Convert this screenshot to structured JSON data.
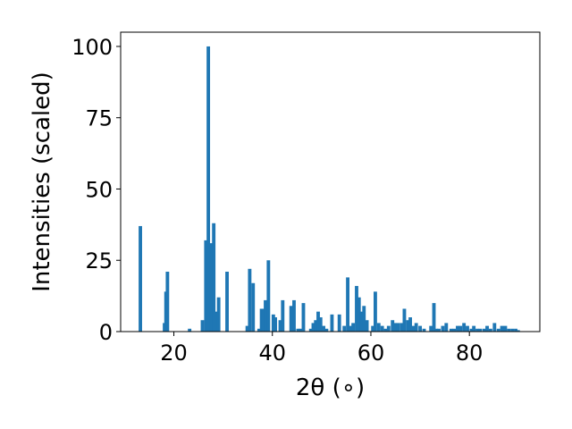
{
  "chart_data": {
    "type": "bar",
    "title": "",
    "xlabel": "2θ (∘)",
    "ylabel": "Intensities (scaled)",
    "xlim": [
      9.2,
      94.3
    ],
    "ylim": [
      0,
      105
    ],
    "xticks": [
      20,
      40,
      60,
      80
    ],
    "yticks": [
      0,
      25,
      50,
      75,
      100
    ],
    "grid": false,
    "legend": "none",
    "bar_color": "#1f77b4",
    "bar_width": 0.7,
    "x": [
      13.2,
      18.1,
      18.4,
      18.7,
      23.2,
      25.8,
      26.5,
      27.0,
      27.6,
      28.1,
      28.6,
      29.1,
      30.8,
      34.9,
      35.4,
      36.1,
      37.3,
      37.8,
      38.2,
      38.6,
      39.2,
      40.2,
      40.6,
      41.6,
      42.1,
      43.8,
      44.4,
      45.2,
      45.7,
      46.3,
      47.8,
      48.3,
      48.8,
      49.3,
      49.8,
      50.4,
      51.0,
      52.1,
      53.6,
      54.6,
      55.3,
      55.8,
      56.4,
      57.1,
      57.6,
      58.1,
      58.6,
      59.2,
      60.4,
      60.9,
      61.6,
      62.3,
      63.0,
      63.6,
      64.4,
      64.9,
      65.5,
      66.2,
      66.8,
      67.5,
      68.0,
      68.7,
      69.2,
      70.0,
      70.8,
      72.2,
      72.8,
      73.3,
      73.8,
      74.6,
      75.3,
      76.3,
      76.9,
      77.6,
      78.2,
      78.9,
      79.6,
      80.4,
      80.9,
      81.6,
      82.2,
      83.0,
      83.6,
      84.3,
      85.1,
      85.9,
      86.6,
      87.3,
      88.0,
      88.7,
      89.4,
      89.9
    ],
    "values": [
      37,
      3,
      14,
      21,
      1,
      4,
      32,
      100,
      31,
      38,
      7,
      12,
      21,
      2,
      22,
      17,
      1,
      8,
      8,
      11,
      25,
      6,
      5,
      4,
      11,
      9,
      11,
      1,
      1,
      10,
      1,
      3,
      4,
      7,
      5,
      2,
      1,
      6,
      6,
      2,
      19,
      2,
      3,
      16,
      12,
      7,
      9,
      4,
      2,
      14,
      3,
      2,
      1,
      2,
      4,
      3,
      3,
      3,
      8,
      4,
      5,
      2,
      3,
      2,
      1,
      2,
      10,
      1,
      1,
      2,
      3,
      1,
      1,
      2,
      2,
      3,
      2,
      1,
      2,
      1,
      1,
      1,
      2,
      1,
      3,
      1,
      2,
      2,
      1,
      1,
      1,
      0.5
    ]
  }
}
